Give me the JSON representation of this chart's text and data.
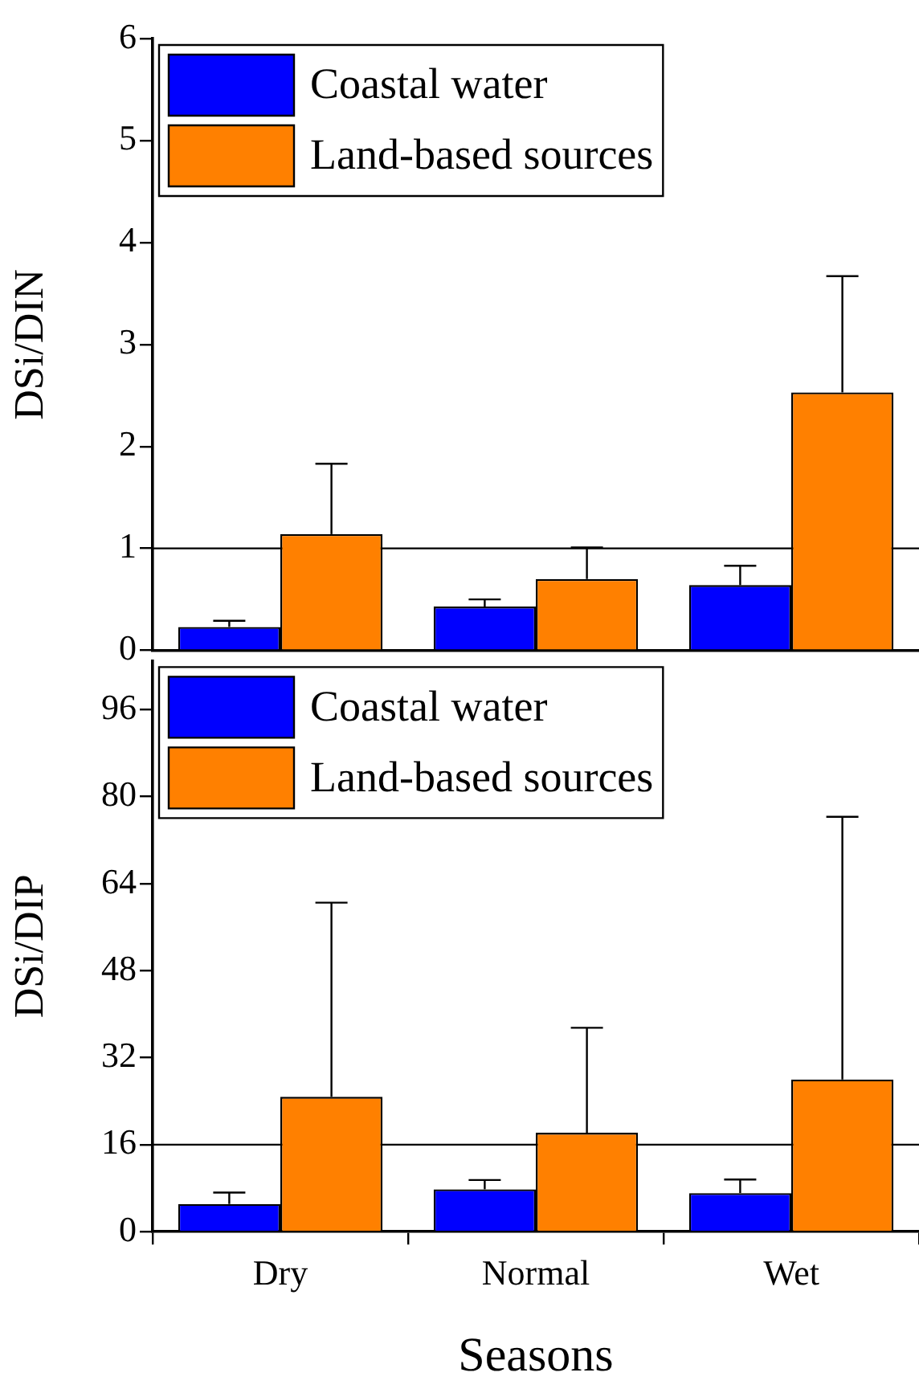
{
  "chart_data": [
    {
      "type": "bar",
      "ylabel": "DSi/DIN",
      "categories": [
        null,
        null,
        null
      ],
      "tick_labels": "y",
      "ylim": [
        0,
        6
      ],
      "yticks": [
        0,
        1,
        2,
        3,
        4,
        5,
        6
      ],
      "legend": "top left",
      "series": [
        {
          "name": "Coastal water",
          "color": "#0000ff",
          "values": [
            0.23,
            0.43,
            0.64
          ],
          "errors": [
            [
              0.23,
              0.29
            ],
            [
              0.43,
              0.5
            ],
            [
              0.64,
              0.83
            ]
          ]
        },
        {
          "name": "Land-based sources",
          "color": "#ff8000",
          "values": [
            1.14,
            0.7,
            2.53
          ],
          "errors": [
            [
              1.14,
              1.83
            ],
            [
              0.7,
              1.01
            ],
            [
              2.53,
              3.67
            ]
          ]
        }
      ],
      "ref_lines": [
        {
          "axis": "y",
          "value": 1
        }
      ]
    },
    {
      "type": "bar",
      "ylabel": "DSi/DIP",
      "xlabel": "Seasons",
      "categories": [
        "Dry",
        "Normal",
        "Wet"
      ],
      "ylim": [
        0,
        105
      ],
      "yticks": [
        0,
        16,
        32,
        48,
        64,
        80,
        96
      ],
      "legend": "top left",
      "series": [
        {
          "name": "Coastal water",
          "color": "#0000ff",
          "values": [
            5.1,
            7.8,
            7.1
          ],
          "errors": [
            [
              5.1,
              7.2
            ],
            [
              7.8,
              9.5
            ],
            [
              7.1,
              9.6
            ]
          ]
        },
        {
          "name": "Land-based sources",
          "color": "#ff8000",
          "values": [
            24.8,
            18.2,
            28.0
          ],
          "errors": [
            [
              24.8,
              60.5
            ],
            [
              18.2,
              37.5
            ],
            [
              28.0,
              76.3
            ]
          ]
        }
      ],
      "ref_lines": [
        {
          "axis": "y",
          "value": 16
        }
      ]
    }
  ]
}
